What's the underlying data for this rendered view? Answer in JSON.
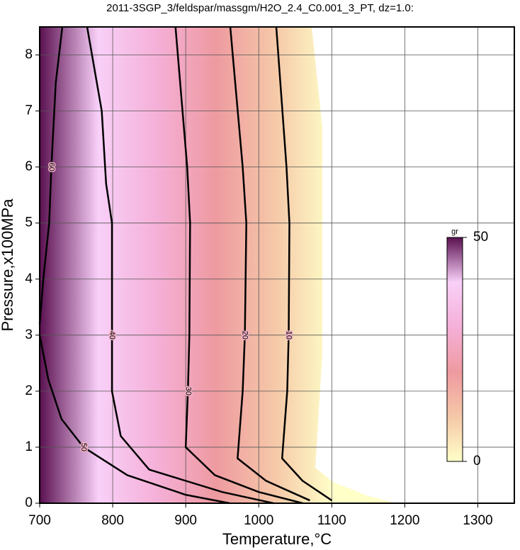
{
  "chart_data": {
    "type": "contour",
    "title": "2011-3SGP_3/feldspar/massgm/H2O_2.4_C0.001_3_PT, dz=1.0:",
    "x_label": "Temperature,°C",
    "y_label": "Pressure,x100MPa",
    "xlim": [
      700,
      1350
    ],
    "ylim": [
      0,
      8.5
    ],
    "xticks": [
      700,
      800,
      900,
      1000,
      1100,
      1200,
      1300
    ],
    "yticks": [
      0,
      1,
      2,
      3,
      4,
      5,
      6,
      7,
      8
    ],
    "grid": true,
    "line_color": "#000000",
    "contours": [
      {
        "level": 10,
        "x": [
          1024,
          1038,
          1042,
          1041,
          1039,
          1032,
          1060,
          1100
        ],
        "y": [
          8.5,
          6,
          5,
          3,
          2,
          0.8,
          0.4,
          0.05
        ]
      },
      {
        "level": 20,
        "x": [
          961,
          978,
          983,
          981,
          978,
          971,
          1010,
          1070
        ],
        "y": [
          8.5,
          6,
          5,
          3,
          2,
          0.8,
          0.4,
          0.05
        ]
      },
      {
        "level": 30,
        "x": [
          886,
          902,
          906,
          905,
          903,
          900,
          940,
          1000,
          1060
        ],
        "y": [
          8.5,
          6,
          5,
          3,
          2,
          1,
          0.5,
          0.2,
          0
        ]
      },
      {
        "level": 40,
        "x": [
          765,
          785,
          791,
          799,
          799,
          799,
          811,
          850,
          950,
          1020
        ],
        "y": [
          8.5,
          7,
          5.7,
          5,
          3,
          2,
          1.2,
          0.6,
          0.2,
          0
        ]
      },
      {
        "level": 50,
        "x": [
          700,
          712,
          730,
          760,
          820,
          900,
          960
        ],
        "y": [
          3.0,
          2.2,
          1.5,
          1.0,
          0.5,
          0.15,
          0
        ]
      },
      {
        "level": 60,
        "x": [
          731,
          722,
          716,
          713,
          705,
          700
        ],
        "y": [
          8.5,
          7.5,
          6,
          5,
          4,
          3.2
        ]
      }
    ],
    "colorbar": {
      "label": "gr",
      "lim": [
        0,
        50
      ],
      "ticks": [
        0,
        50
      ],
      "colormap": [
        "#ffffc8",
        "#f5c8a8",
        "#ee9aa0",
        "#f5b0d8",
        "#f8d0f8",
        "#5a1050"
      ]
    }
  }
}
